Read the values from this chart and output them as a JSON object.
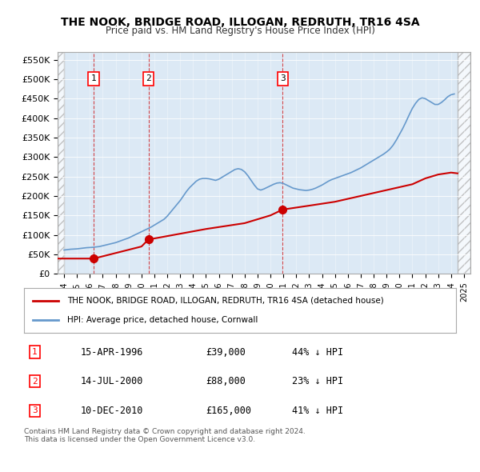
{
  "title": "THE NOOK, BRIDGE ROAD, ILLOGAN, REDRUTH, TR16 4SA",
  "subtitle": "Price paid vs. HM Land Registry's House Price Index (HPI)",
  "xlabel": "",
  "ylabel": "",
  "ylim": [
    0,
    570000
  ],
  "xlim_start": 1993.5,
  "xlim_end": 2025.5,
  "yticks": [
    0,
    50000,
    100000,
    150000,
    200000,
    250000,
    300000,
    350000,
    400000,
    450000,
    500000,
    550000
  ],
  "ytick_labels": [
    "£0",
    "£50K",
    "£100K",
    "£150K",
    "£200K",
    "£250K",
    "£300K",
    "£350K",
    "£400K",
    "£450K",
    "£500K",
    "£550K"
  ],
  "xticks": [
    1994,
    1995,
    1996,
    1997,
    1998,
    1999,
    2000,
    2001,
    2002,
    2003,
    2004,
    2005,
    2006,
    2007,
    2008,
    2009,
    2010,
    2011,
    2012,
    2013,
    2014,
    2015,
    2016,
    2017,
    2018,
    2019,
    2020,
    2021,
    2022,
    2023,
    2024,
    2025
  ],
  "background_color": "#ffffff",
  "plot_bg_color": "#dce9f5",
  "hatch_color": "#cccccc",
  "sale_dates": [
    1996.29,
    2000.54,
    2010.95
  ],
  "sale_prices": [
    39000,
    88000,
    165000
  ],
  "sale_labels": [
    "1",
    "2",
    "3"
  ],
  "red_line_color": "#cc0000",
  "blue_line_color": "#6699cc",
  "legend_red_label": "THE NOOK, BRIDGE ROAD, ILLOGAN, REDRUTH, TR16 4SA (detached house)",
  "legend_blue_label": "HPI: Average price, detached house, Cornwall",
  "footer_text": "Contains HM Land Registry data © Crown copyright and database right 2024.\nThis data is licensed under the Open Government Licence v3.0.",
  "table_data": [
    [
      "1",
      "15-APR-1996",
      "£39,000",
      "44% ↓ HPI"
    ],
    [
      "2",
      "14-JUL-2000",
      "£88,000",
      "23% ↓ HPI"
    ],
    [
      "3",
      "10-DEC-2010",
      "£165,000",
      "41% ↓ HPI"
    ]
  ],
  "hpi_years": [
    1994.0,
    1994.25,
    1994.5,
    1994.75,
    1995.0,
    1995.25,
    1995.5,
    1995.75,
    1996.0,
    1996.25,
    1996.5,
    1996.75,
    1997.0,
    1997.25,
    1997.5,
    1997.75,
    1998.0,
    1998.25,
    1998.5,
    1998.75,
    1999.0,
    1999.25,
    1999.5,
    1999.75,
    2000.0,
    2000.25,
    2000.5,
    2000.75,
    2001.0,
    2001.25,
    2001.5,
    2001.75,
    2002.0,
    2002.25,
    2002.5,
    2002.75,
    2003.0,
    2003.25,
    2003.5,
    2003.75,
    2004.0,
    2004.25,
    2004.5,
    2004.75,
    2005.0,
    2005.25,
    2005.5,
    2005.75,
    2006.0,
    2006.25,
    2006.5,
    2006.75,
    2007.0,
    2007.25,
    2007.5,
    2007.75,
    2008.0,
    2008.25,
    2008.5,
    2008.75,
    2009.0,
    2009.25,
    2009.5,
    2009.75,
    2010.0,
    2010.25,
    2010.5,
    2010.75,
    2011.0,
    2011.25,
    2011.5,
    2011.75,
    2012.0,
    2012.25,
    2012.5,
    2012.75,
    2013.0,
    2013.25,
    2013.5,
    2013.75,
    2014.0,
    2014.25,
    2014.5,
    2014.75,
    2015.0,
    2015.25,
    2015.5,
    2015.75,
    2016.0,
    2016.25,
    2016.5,
    2016.75,
    2017.0,
    2017.25,
    2017.5,
    2017.75,
    2018.0,
    2018.25,
    2018.5,
    2018.75,
    2019.0,
    2019.25,
    2019.5,
    2019.75,
    2020.0,
    2020.25,
    2020.5,
    2020.75,
    2021.0,
    2021.25,
    2021.5,
    2021.75,
    2022.0,
    2022.25,
    2022.5,
    2022.75,
    2023.0,
    2023.25,
    2023.5,
    2023.75,
    2024.0,
    2024.25
  ],
  "hpi_values": [
    61000,
    62000,
    63000,
    63500,
    64000,
    65000,
    66000,
    67000,
    67500,
    68000,
    69000,
    70000,
    72000,
    74000,
    76000,
    78000,
    80000,
    83000,
    86000,
    89000,
    92000,
    96000,
    100000,
    104000,
    108000,
    112000,
    116000,
    120000,
    125000,
    130000,
    135000,
    140000,
    148000,
    158000,
    168000,
    178000,
    188000,
    200000,
    212000,
    222000,
    230000,
    238000,
    243000,
    245000,
    245000,
    244000,
    242000,
    240000,
    243000,
    248000,
    253000,
    258000,
    263000,
    268000,
    270000,
    268000,
    262000,
    252000,
    240000,
    228000,
    218000,
    215000,
    218000,
    222000,
    226000,
    230000,
    233000,
    234000,
    232000,
    228000,
    224000,
    220000,
    218000,
    216000,
    215000,
    214000,
    215000,
    217000,
    220000,
    224000,
    228000,
    233000,
    238000,
    242000,
    245000,
    248000,
    251000,
    254000,
    257000,
    260000,
    264000,
    268000,
    272000,
    277000,
    282000,
    287000,
    292000,
    297000,
    302000,
    307000,
    313000,
    320000,
    330000,
    343000,
    358000,
    373000,
    390000,
    408000,
    425000,
    438000,
    448000,
    452000,
    450000,
    445000,
    440000,
    435000,
    435000,
    440000,
    447000,
    455000,
    460000,
    462000
  ],
  "red_years": [
    1993.5,
    1996.29,
    2000.54,
    2010.95,
    2024.25
  ],
  "red_values": [
    39000,
    39000,
    88000,
    165000,
    255000
  ]
}
